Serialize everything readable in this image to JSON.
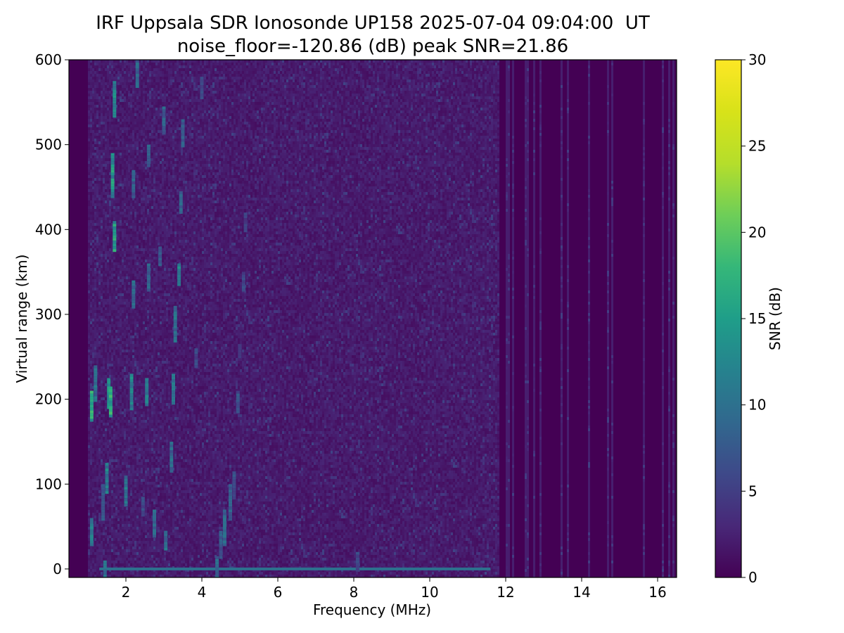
{
  "chart_data": {
    "type": "heatmap",
    "title": "IRF Uppsala SDR Ionosonde UP158 2025-07-04 09:04:00  UT",
    "subtitle": "noise_floor=-120.86 (dB) peak SNR=21.86",
    "xlabel": "Frequency (MHz)",
    "ylabel": "Virtual range (km)",
    "xlim": [
      0.5,
      16.5
    ],
    "ylim": [
      -10,
      600
    ],
    "xticks": [
      2,
      4,
      6,
      8,
      10,
      12,
      14,
      16
    ],
    "yticks": [
      0,
      100,
      200,
      300,
      400,
      500,
      600
    ],
    "data_freq_range": [
      1.0,
      16.4
    ],
    "colorbar": {
      "label": "SNR (dB)",
      "range": [
        0,
        30
      ],
      "ticks": [
        0,
        5,
        10,
        15,
        20,
        25,
        30
      ],
      "colormap": "viridis"
    },
    "echo_traces": [
      {
        "freq": 1.1,
        "range": [
          30,
          60
        ],
        "snr": 14
      },
      {
        "freq": 1.1,
        "range": [
          175,
          210
        ],
        "snr": 20
      },
      {
        "freq": 1.2,
        "range": [
          200,
          240
        ],
        "snr": 12
      },
      {
        "freq": 1.4,
        "range": [
          60,
          100
        ],
        "snr": 9
      },
      {
        "freq": 1.45,
        "range": [
          -10,
          10
        ],
        "snr": 11
      },
      {
        "freq": 1.5,
        "range": [
          90,
          125
        ],
        "snr": 14
      },
      {
        "freq": 1.55,
        "range": [
          190,
          225
        ],
        "snr": 16
      },
      {
        "freq": 1.6,
        "range": [
          180,
          215
        ],
        "snr": 19
      },
      {
        "freq": 1.65,
        "range": [
          440,
          490
        ],
        "snr": 17
      },
      {
        "freq": 1.7,
        "range": [
          375,
          410
        ],
        "snr": 18
      },
      {
        "freq": 1.7,
        "range": [
          535,
          575
        ],
        "snr": 15
      },
      {
        "freq": 2.0,
        "range": [
          75,
          110
        ],
        "snr": 13
      },
      {
        "freq": 2.15,
        "range": [
          190,
          230
        ],
        "snr": 15
      },
      {
        "freq": 2.2,
        "range": [
          310,
          340
        ],
        "snr": 11
      },
      {
        "freq": 2.2,
        "range": [
          440,
          470
        ],
        "snr": 10
      },
      {
        "freq": 2.3,
        "range": [
          570,
          600
        ],
        "snr": 11
      },
      {
        "freq": 2.45,
        "range": [
          65,
          85
        ],
        "snr": 8
      },
      {
        "freq": 2.55,
        "range": [
          195,
          225
        ],
        "snr": 13
      },
      {
        "freq": 2.6,
        "range": [
          330,
          360
        ],
        "snr": 10
      },
      {
        "freq": 2.6,
        "range": [
          475,
          500
        ],
        "snr": 10
      },
      {
        "freq": 2.75,
        "range": [
          40,
          70
        ],
        "snr": 11
      },
      {
        "freq": 2.9,
        "range": [
          360,
          380
        ],
        "snr": 9
      },
      {
        "freq": 3.0,
        "range": [
          515,
          545
        ],
        "snr": 10
      },
      {
        "freq": 3.05,
        "range": [
          25,
          45
        ],
        "snr": 12
      },
      {
        "freq": 3.2,
        "range": [
          115,
          150
        ],
        "snr": 11
      },
      {
        "freq": 3.25,
        "range": [
          195,
          230
        ],
        "snr": 12
      },
      {
        "freq": 3.3,
        "range": [
          270,
          310
        ],
        "snr": 12
      },
      {
        "freq": 3.4,
        "range": [
          335,
          360
        ],
        "snr": 15
      },
      {
        "freq": 3.45,
        "range": [
          420,
          445
        ],
        "snr": 10
      },
      {
        "freq": 3.5,
        "range": [
          500,
          530
        ],
        "snr": 10
      },
      {
        "freq": 3.85,
        "range": [
          240,
          260
        ],
        "snr": 7
      },
      {
        "freq": 4.0,
        "range": [
          555,
          580
        ],
        "snr": 7
      },
      {
        "freq": 4.4,
        "range": [
          -10,
          15
        ],
        "snr": 11
      },
      {
        "freq": 4.5,
        "range": [
          15,
          45
        ],
        "snr": 9
      },
      {
        "freq": 4.6,
        "range": [
          30,
          70
        ],
        "snr": 11
      },
      {
        "freq": 4.75,
        "range": [
          60,
          100
        ],
        "snr": 10
      },
      {
        "freq": 4.85,
        "range": [
          85,
          115
        ],
        "snr": 8
      },
      {
        "freq": 4.95,
        "range": [
          185,
          210
        ],
        "snr": 8
      },
      {
        "freq": 5.0,
        "range": [
          250,
          265
        ],
        "snr": 6
      },
      {
        "freq": 5.1,
        "range": [
          330,
          350
        ],
        "snr": 7
      },
      {
        "freq": 5.15,
        "range": [
          400,
          420
        ],
        "snr": 6
      },
      {
        "freq": 8.1,
        "range": [
          0,
          20
        ],
        "snr": 8
      }
    ],
    "ground_echo": {
      "range": 0,
      "freq_range": [
        1.3,
        11.6
      ],
      "snr": 10
    }
  }
}
